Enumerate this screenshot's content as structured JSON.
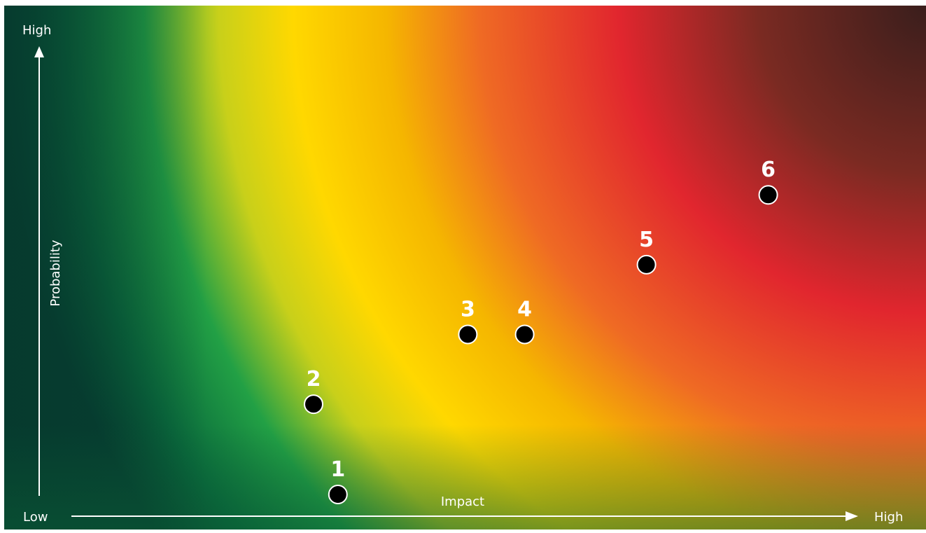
{
  "chart_data": {
    "type": "scatter",
    "title": "",
    "xlabel": "Impact",
    "ylabel": "Probability",
    "x_axis": {
      "low_label": "Low",
      "high_label": "High"
    },
    "y_axis": {
      "high_label": "High"
    },
    "xlim": [
      0,
      10
    ],
    "ylim": [
      0,
      10
    ],
    "grid": false,
    "background": "heatmap gradient green (low) to yellow to red to dark brown (high)",
    "points": [
      {
        "label": "1",
        "x": 3.3,
        "y": 0.0
      },
      {
        "label": "2",
        "x": 3.0,
        "y": 2.2
      },
      {
        "label": "3",
        "x": 4.9,
        "y": 3.9
      },
      {
        "label": "4",
        "x": 5.6,
        "y": 3.9
      },
      {
        "label": "5",
        "x": 7.1,
        "y": 5.6
      },
      {
        "label": "6",
        "x": 8.6,
        "y": 7.3
      }
    ]
  },
  "colors": {
    "low_risk": "#0a6a3c",
    "medium_low": "#1f9a45",
    "medium": "#ffd800",
    "medium_high": "#f5a623",
    "high": "#e1262e",
    "extreme": "#3d1c1a",
    "marker": "#000000",
    "text": "#ffffff"
  }
}
